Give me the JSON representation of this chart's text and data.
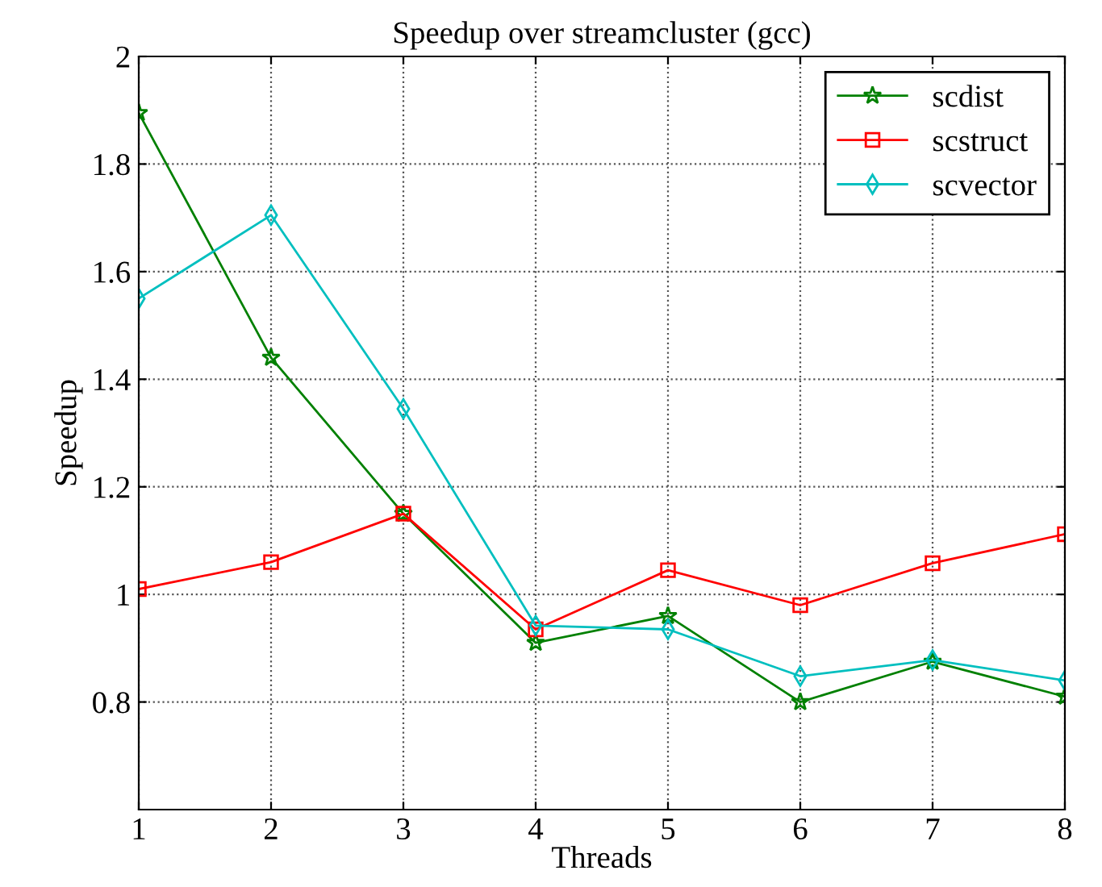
{
  "chart_data": {
    "type": "line",
    "title": "Speedup over streamcluster (gcc)",
    "xlabel": "Threads",
    "ylabel": "Speedup",
    "x": [
      1,
      2,
      3,
      4,
      5,
      6,
      7,
      8
    ],
    "series": [
      {
        "name": "scdist",
        "color": "#008000",
        "marker": "star",
        "values": [
          1.895,
          1.44,
          1.15,
          0.91,
          0.96,
          0.8,
          0.875,
          0.81
        ]
      },
      {
        "name": "scstruct",
        "color": "#ff0000",
        "marker": "square",
        "values": [
          1.01,
          1.06,
          1.15,
          0.935,
          1.045,
          0.98,
          1.058,
          1.112
        ]
      },
      {
        "name": "scvector",
        "color": "#00bfbf",
        "marker": "diamond",
        "values": [
          1.55,
          1.705,
          1.345,
          0.942,
          0.935,
          0.848,
          0.878,
          0.84
        ]
      }
    ],
    "xlim": [
      1,
      8
    ],
    "xticks": [
      1,
      2,
      3,
      4,
      5,
      6,
      7,
      8
    ],
    "ylim": [
      0.6,
      2
    ],
    "yticks": [
      0.8,
      1,
      1.2,
      1.4,
      1.6,
      1.8,
      2
    ],
    "grid": true,
    "legend": "top right",
    "line_style": "solid"
  }
}
